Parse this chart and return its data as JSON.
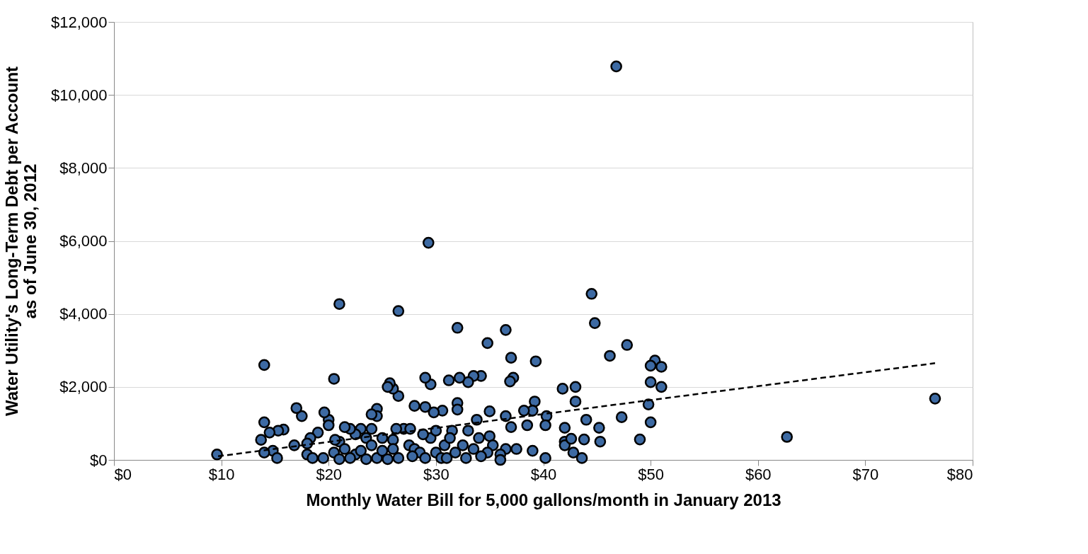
{
  "chart_data": {
    "type": "scatter",
    "xlabel": "Monthly Water Bill for 5,000 gallons/month in January 2013",
    "ylabel": "Water Utility's Long-Term Debt per Account\nas of June 30, 2012",
    "xlim": [
      0,
      80
    ],
    "ylim": [
      0,
      12000
    ],
    "xticks": [
      {
        "value": 0,
        "label": "$0"
      },
      {
        "value": 10,
        "label": "$10"
      },
      {
        "value": 20,
        "label": "$20"
      },
      {
        "value": 30,
        "label": "$30"
      },
      {
        "value": 40,
        "label": "$40"
      },
      {
        "value": 50,
        "label": "$50"
      },
      {
        "value": 60,
        "label": "$60"
      },
      {
        "value": 70,
        "label": "$70"
      },
      {
        "value": 80,
        "label": "$80"
      }
    ],
    "yticks": [
      {
        "value": 0,
        "label": "$0"
      },
      {
        "value": 2000,
        "label": "$2,000"
      },
      {
        "value": 4000,
        "label": "$4,000"
      },
      {
        "value": 6000,
        "label": "$6,000"
      },
      {
        "value": 8000,
        "label": "$8,000"
      },
      {
        "value": 10000,
        "label": "$10,000"
      },
      {
        "value": 12000,
        "label": "$12,000"
      }
    ],
    "grid": "y",
    "marker": "circle",
    "series": [
      {
        "color": "#3d6aa3",
        "x": [
          9.6,
          46.8,
          29.3,
          21,
          26.5,
          44.5,
          44.8,
          32,
          36.5,
          34.8,
          47.8,
          46.2,
          37,
          39.3,
          14,
          50.4,
          50,
          51,
          50,
          51,
          49.8,
          50,
          49,
          62.7,
          76.5,
          47.3,
          45.2,
          45.3,
          44,
          43.8,
          43,
          43,
          41.8,
          42,
          42,
          42,
          42.6,
          42.8,
          43.6,
          40.3,
          40.2,
          40.2,
          39.2,
          39,
          38.2,
          38.5,
          39,
          37.2,
          36.9,
          37,
          36.5,
          36.5,
          37.5,
          36,
          36,
          35,
          35,
          35.3,
          34.8,
          34.2,
          33.5,
          33,
          32.2,
          31.2,
          32,
          32,
          30.6,
          29.8,
          29.5,
          29,
          29,
          28,
          26.5,
          26,
          25.7,
          25.5,
          27,
          27.6,
          26.3,
          26,
          26,
          25,
          24.5,
          24.5,
          24,
          24,
          23,
          22.5,
          22,
          21.5,
          21,
          20.6,
          20.5,
          20,
          19.6,
          20,
          19,
          18.3,
          18,
          18,
          17.5,
          17,
          16.8,
          15.8,
          15.3,
          14.8,
          15.2,
          14,
          14.5,
          13.7,
          14,
          19.5,
          20.5,
          21.5,
          22.5,
          22,
          23,
          23.5,
          24.5,
          25,
          26.5,
          27.5,
          28,
          28.5,
          29,
          29.5,
          30,
          30.5,
          30.8,
          31.5,
          31.3,
          31.8,
          32.5,
          33,
          33.5,
          33.8,
          34,
          34.2,
          32.8,
          28.8,
          30,
          27.8,
          24,
          21,
          18.5,
          23.5,
          25.5,
          31
        ],
        "values": [
          150,
          10780,
          5950,
          4270,
          4080,
          4550,
          3750,
          3620,
          3560,
          3200,
          3150,
          2850,
          2800,
          2700,
          2600,
          2720,
          2580,
          2550,
          2130,
          2000,
          1520,
          1030,
          560,
          630,
          1680,
          1170,
          880,
          500,
          1100,
          560,
          2000,
          1600,
          1950,
          880,
          500,
          400,
          580,
          200,
          50,
          1200,
          950,
          50,
          1600,
          1350,
          1350,
          950,
          250,
          2250,
          2150,
          900,
          1200,
          300,
          300,
          150,
          0,
          1330,
          650,
          400,
          200,
          2300,
          2300,
          2130,
          2250,
          2180,
          1560,
          1380,
          1350,
          1300,
          2070,
          2250,
          1450,
          1480,
          1750,
          1950,
          2100,
          2000,
          850,
          850,
          850,
          550,
          300,
          600,
          1400,
          1200,
          1250,
          850,
          850,
          700,
          850,
          900,
          500,
          550,
          2220,
          1100,
          1300,
          950,
          750,
          600,
          450,
          150,
          1200,
          1420,
          400,
          830,
          800,
          250,
          50,
          1030,
          750,
          550,
          200,
          50,
          200,
          300,
          150,
          50,
          250,
          600,
          50,
          250,
          50,
          400,
          300,
          200,
          50,
          600,
          200,
          50,
          400,
          800,
          600,
          200,
          400,
          800,
          300,
          1100,
          600,
          100,
          50,
          700,
          800,
          100,
          400,
          20,
          50,
          20,
          20,
          50
        ]
      },
      {
        "type": "line",
        "color": "#000000",
        "line_style": "dashed",
        "marker": "none",
        "x": [
          9.7,
          76.5
        ],
        "values": [
          100,
          2650
        ]
      }
    ]
  }
}
